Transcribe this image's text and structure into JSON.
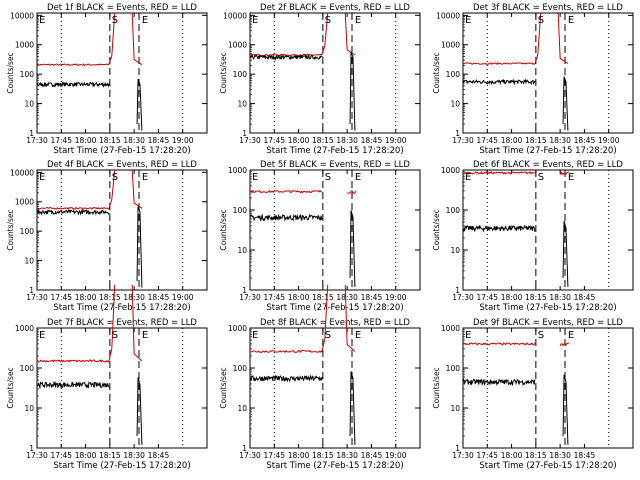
{
  "chart_data": [
    {
      "type": "line",
      "panel": "Det 1f",
      "title": "Det 1f BLACK = Events, RED = LLD",
      "xlabel": "Start Time (27-Feb-15 17:28:20)",
      "ylabel": "Counts/sec",
      "xticks": [
        "17:30",
        "17:45",
        "18:00",
        "18:15",
        "18:30",
        "18:45",
        "19:00"
      ],
      "yticks": [
        "1",
        "10",
        "100",
        "1000",
        "10000"
      ],
      "ylim": [
        1,
        12000
      ],
      "log_y": true,
      "markers": [
        "E",
        "S",
        "E"
      ],
      "series": [
        {
          "color": "#000000",
          "level": 45,
          "dips": true
        },
        {
          "color": "#cc0000",
          "level": 210,
          "flare": true
        }
      ]
    },
    {
      "type": "line",
      "panel": "Det 2f",
      "title": "Det 2f BLACK = Events, RED = LLD",
      "xlabel": "Start Time (27-Feb-15 17:28:20)",
      "ylabel": "Counts/sec",
      "xticks": [
        "17:30",
        "17:45",
        "18:00",
        "18:15",
        "18:30",
        "18:45",
        "19:00"
      ],
      "yticks": [
        "1",
        "10",
        "100",
        "1000",
        "10000"
      ],
      "ylim": [
        1,
        12000
      ],
      "log_y": true,
      "markers": [
        "E",
        "S",
        "E"
      ],
      "series": [
        {
          "color": "#000000",
          "level": 380,
          "dips": true
        },
        {
          "color": "#cc0000",
          "level": 450,
          "flare": true
        }
      ]
    },
    {
      "type": "line",
      "panel": "Det 3f",
      "title": "Det 3f BLACK = Events, RED = LLD",
      "xlabel": "Start Time (27-Feb-15 17:28:20)",
      "ylabel": "Counts/sec",
      "xticks": [
        "17:30",
        "17:45",
        "18:00",
        "18:15",
        "18:30",
        "18:45",
        "19:00"
      ],
      "yticks": [
        "1",
        "10",
        "100",
        "1000",
        "10000"
      ],
      "ylim": [
        1,
        12000
      ],
      "log_y": true,
      "markers": [
        "E",
        "S",
        "E"
      ],
      "series": [
        {
          "color": "#000000",
          "level": 55,
          "dips": true
        },
        {
          "color": "#cc0000",
          "level": 230,
          "flare": true
        }
      ]
    },
    {
      "type": "line",
      "panel": "Det 4f",
      "title": "Det 4f BLACK = Events, RED = LLD",
      "xlabel": "Start Time (27-Feb-15 17:28:20)",
      "ylabel": "Counts/sec",
      "xticks": [
        "17:30",
        "17:45",
        "18:00",
        "18:15",
        "18:30",
        "18:45",
        "19:00"
      ],
      "yticks": [
        "1",
        "10",
        "100",
        "1000",
        "10000"
      ],
      "ylim": [
        1,
        12000
      ],
      "log_y": true,
      "markers": [
        "E",
        "S",
        "E"
      ],
      "series": [
        {
          "color": "#000000",
          "level": 450,
          "dips": true
        },
        {
          "color": "#cc0000",
          "level": 600,
          "flare": true
        }
      ]
    },
    {
      "type": "line",
      "panel": "Det 5f",
      "title": "Det 5f BLACK = Events, RED = LLD",
      "xlabel": "Start Time (27-Feb-15 17:28:20)",
      "ylabel": "Counts/sec",
      "xticks": [
        "17:30",
        "17:45",
        "18:00",
        "18:15",
        "18:30",
        "18:45",
        "19:00"
      ],
      "yticks": [
        "1",
        "10",
        "100",
        "1000"
      ],
      "ylim": [
        1,
        1000
      ],
      "log_y": true,
      "markers": [
        "E",
        "S",
        "E"
      ],
      "series": [
        {
          "color": "#000000",
          "level": 65,
          "dips": true
        },
        {
          "color": "#cc0000",
          "level": 290,
          "flare": false
        }
      ]
    },
    {
      "type": "line",
      "panel": "Det 6f",
      "title": "Det 6f BLACK = Events, RED = LLD",
      "xlabel": "Start Time (27-Feb-15 17:28:20)",
      "ylabel": "Counts/sec",
      "xticks": [
        "17:30",
        "17:45",
        "18:00",
        "18:15",
        "18:30",
        "18:45"
      ],
      "yticks": [
        "1",
        "10",
        "100",
        "1000"
      ],
      "ylim": [
        1,
        1000
      ],
      "log_y": true,
      "markers": [
        "E",
        "S",
        "E"
      ],
      "series": [
        {
          "color": "#000000",
          "level": 35,
          "dips": true
        },
        {
          "color": "#cc0000",
          "level": 850,
          "flare": false
        }
      ]
    },
    {
      "type": "line",
      "panel": "Det 7f",
      "title": "Det 7f BLACK = Events, RED = LLD",
      "xlabel": "Start Time (27-Feb-15 17:28:20)",
      "ylabel": "Counts/sec",
      "xticks": [
        "17:30",
        "17:45",
        "18:00",
        "18:15",
        "18:30",
        "18:45"
      ],
      "yticks": [
        "1",
        "10",
        "100",
        "1000"
      ],
      "ylim": [
        1,
        1000
      ],
      "log_y": true,
      "markers": [
        "E",
        "S",
        "E"
      ],
      "series": [
        {
          "color": "#000000",
          "level": 38,
          "dips": true
        },
        {
          "color": "#cc0000",
          "level": 150,
          "flare": true
        }
      ]
    },
    {
      "type": "line",
      "panel": "Det 8f",
      "title": "Det 8f BLACK = Events, RED = LLD",
      "xlabel": "Start Time (27-Feb-15 17:28:20)",
      "ylabel": "Counts/sec",
      "xticks": [
        "17:30",
        "17:45",
        "18:00",
        "18:15",
        "18:30",
        "18:45",
        "19:00"
      ],
      "yticks": [
        "1",
        "10",
        "100",
        "1000"
      ],
      "ylim": [
        1,
        1000
      ],
      "log_y": true,
      "markers": [
        "E",
        "S",
        "E"
      ],
      "series": [
        {
          "color": "#000000",
          "level": 55,
          "dips": true
        },
        {
          "color": "#cc0000",
          "level": 260,
          "flare": true
        }
      ]
    },
    {
      "type": "line",
      "panel": "Det 9f",
      "title": "Det 9f BLACK = Events, RED = LLD",
      "xlabel": "Start Time (27-Feb-15 17:28:20)",
      "ylabel": "Counts/sec",
      "xticks": [
        "17:30",
        "17:45",
        "18:00",
        "18:15",
        "18:30",
        "18:45"
      ],
      "yticks": [
        "1",
        "10",
        "100",
        "1000"
      ],
      "ylim": [
        1,
        1000
      ],
      "log_y": true,
      "markers": [
        "E",
        "S",
        "E"
      ],
      "series": [
        {
          "color": "#000000",
          "level": 45,
          "dips": true
        },
        {
          "color": "#cc0000",
          "level": 400,
          "flare": false
        }
      ]
    }
  ]
}
